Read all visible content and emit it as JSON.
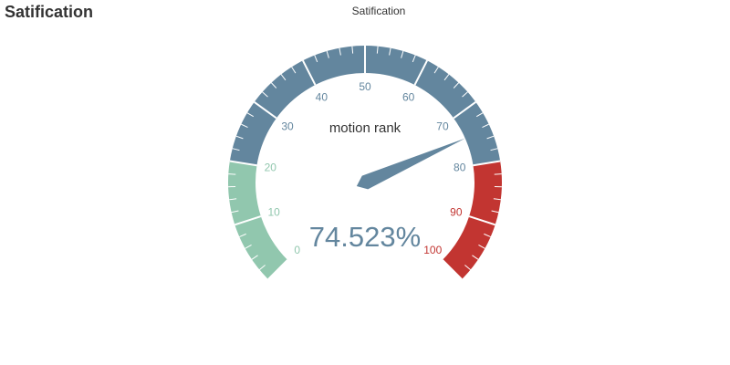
{
  "page": {
    "title": "Satification"
  },
  "chart_data": {
    "type": "gauge",
    "title": "Satification",
    "series_name": "motion rank",
    "value": 74.523,
    "value_text": "74.523%",
    "min": 0,
    "max": 100,
    "split_number": 10,
    "tick_labels": [
      "0",
      "10",
      "20",
      "30",
      "40",
      "50",
      "60",
      "70",
      "80",
      "90",
      "100"
    ],
    "bands": [
      {
        "from": 0,
        "to": 20,
        "color": "#91c7ae"
      },
      {
        "from": 20,
        "to": 80,
        "color": "#63869e"
      },
      {
        "from": 80,
        "to": 100,
        "color": "#c23531"
      }
    ],
    "pointer_color": "#63869e",
    "detail_color": "#63869e"
  }
}
